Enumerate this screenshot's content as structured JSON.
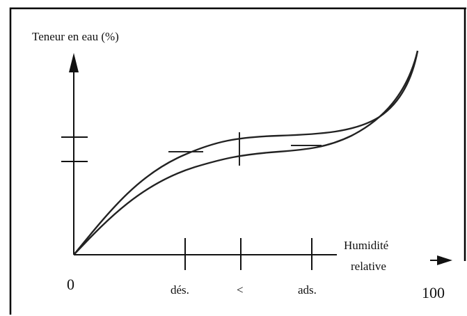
{
  "diagram": {
    "y_axis_label": "Teneur en eau (%)",
    "x_axis_label_line1": "Humidité",
    "x_axis_label_line2": "relative",
    "x_start": "0",
    "x_end": "100",
    "tick_labels": [
      "dés.",
      "<",
      "ads."
    ]
  }
}
